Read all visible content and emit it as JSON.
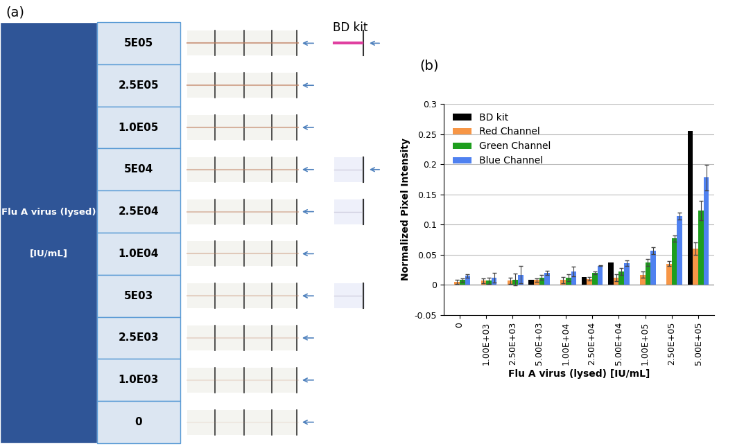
{
  "panel_a": {
    "label": "(a)",
    "row_header": "Flu A virus (lysed)",
    "row_header_unit": "[IU/mL]",
    "rows": [
      "5E05",
      "2.5E05",
      "1.0E05",
      "5E04",
      "2.5E04",
      "1.0E04",
      "5E03",
      "2.5E03",
      "1.0E03",
      "0"
    ],
    "bd_kit": {
      "label": "BD kit",
      "rows": [
        "5E05",
        "5E04",
        "2.5E04",
        "5E03"
      ]
    }
  },
  "panel_b_label": "(b)",
  "chart_data": {
    "type": "bar",
    "x_label": "Flu A virus (lysed) [IU/mL]",
    "y_label": "Normalized Pixel Intensity",
    "categories": [
      "0",
      "1.00E+03",
      "2.50E+03",
      "5.00E+03",
      "1.00E+04",
      "2.50E+04",
      "5.00E+04",
      "1.00E+05",
      "2.50E+05",
      "5.00E+05"
    ],
    "series": [
      {
        "name": "BD kit",
        "color": "#000000",
        "values": [
          null,
          null,
          null,
          0.008,
          null,
          0.013,
          0.037,
          null,
          null,
          0.255
        ]
      },
      {
        "name": "Red Channel",
        "color": "#f79646",
        "values": [
          0.005,
          0.007,
          0.007,
          0.008,
          0.008,
          0.01,
          0.012,
          0.017,
          0.035,
          0.06
        ],
        "errors": [
          0.003,
          0.004,
          0.005,
          0.003,
          0.005,
          0.003,
          0.006,
          0.005,
          0.004,
          0.01
        ]
      },
      {
        "name": "Green Channel",
        "color": "#1e9e1e",
        "values": [
          0.008,
          0.007,
          0.009,
          0.012,
          0.012,
          0.02,
          0.022,
          0.037,
          0.077,
          0.123
        ],
        "errors": [
          0.003,
          0.005,
          0.01,
          0.004,
          0.006,
          0.002,
          0.006,
          0.006,
          0.005,
          0.016
        ]
      },
      {
        "name": "Blue Channel",
        "color": "#4f81f0",
        "values": [
          0.015,
          0.012,
          0.017,
          0.02,
          0.022,
          0.032,
          0.036,
          0.057,
          0.114,
          0.178
        ],
        "errors": [
          0.003,
          0.008,
          0.014,
          0.004,
          0.008,
          0.001,
          0.005,
          0.006,
          0.006,
          0.021
        ]
      }
    ],
    "ylim": [
      -0.05,
      0.3
    ],
    "yticks": [
      -0.05,
      0,
      0.05,
      0.1,
      0.15,
      0.2,
      0.25,
      0.3
    ],
    "grid": true,
    "legend": "upper left"
  }
}
